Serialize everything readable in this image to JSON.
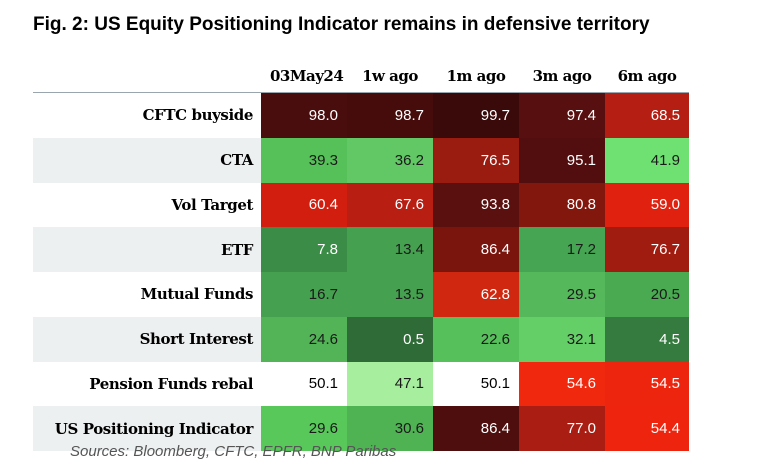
{
  "title": "Fig. 2: US Equity Positioning Indicator remains in defensive territory",
  "sources": "Sources: Bloomberg, CFTC, EPFR, BNP Paribas",
  "chart_data": {
    "type": "heatmap",
    "title": "Fig. 2: US Equity Positioning Indicator remains in defensive territory",
    "columns": [
      "03May24",
      "1w ago",
      "1m ago",
      "3m ago",
      "6m ago"
    ],
    "rows": [
      "CFTC buyside",
      "CTA",
      "Vol Target",
      "ETF",
      "Mutual Funds",
      "Short Interest",
      "Pension Funds rebal",
      "US Positioning Indicator"
    ],
    "values": [
      [
        "98.0",
        "98.7",
        "99.7",
        "97.4",
        "68.5"
      ],
      [
        "39.3",
        "36.2",
        "76.5",
        "95.1",
        "41.9"
      ],
      [
        "60.4",
        "67.6",
        "93.8",
        "80.8",
        "59.0"
      ],
      [
        "7.8",
        "13.4",
        "86.4",
        "17.2",
        "76.7"
      ],
      [
        "16.7",
        "13.5",
        "62.8",
        "29.5",
        "20.5"
      ],
      [
        "24.6",
        "0.5",
        "22.6",
        "32.1",
        "4.5"
      ],
      [
        "50.1",
        "47.1",
        "50.1",
        "54.6",
        "54.5"
      ],
      [
        "29.6",
        "30.6",
        "86.4",
        "77.0",
        "54.4"
      ]
    ],
    "colors": [
      [
        "#4a0d0d",
        "#460c0c",
        "#3a0909",
        "#570f0f",
        "#b51e12"
      ],
      [
        "#56c158",
        "#62c865",
        "#9a1c10",
        "#520e0e",
        "#6fe072"
      ],
      [
        "#d21e0e",
        "#b91e12",
        "#5b1010",
        "#82170d",
        "#e0210f"
      ],
      [
        "#3a8c46",
        "#45a04f",
        "#7a150d",
        "#46a552",
        "#a01b10"
      ],
      [
        "#45a04f",
        "#45a04f",
        "#d02810",
        "#55b85a",
        "#4aaa52"
      ],
      [
        "#52b457",
        "#2e6b36",
        "#56c05a",
        "#64cf67",
        "#357a3e"
      ],
      [
        "#ffffff",
        "#a7ee9e",
        "#ffffff",
        "#f0280e",
        "#ee250e"
      ],
      [
        "#58c85b",
        "#4fb354",
        "#4f0e0e",
        "#a91d12",
        "#ef240e"
      ]
    ]
  }
}
